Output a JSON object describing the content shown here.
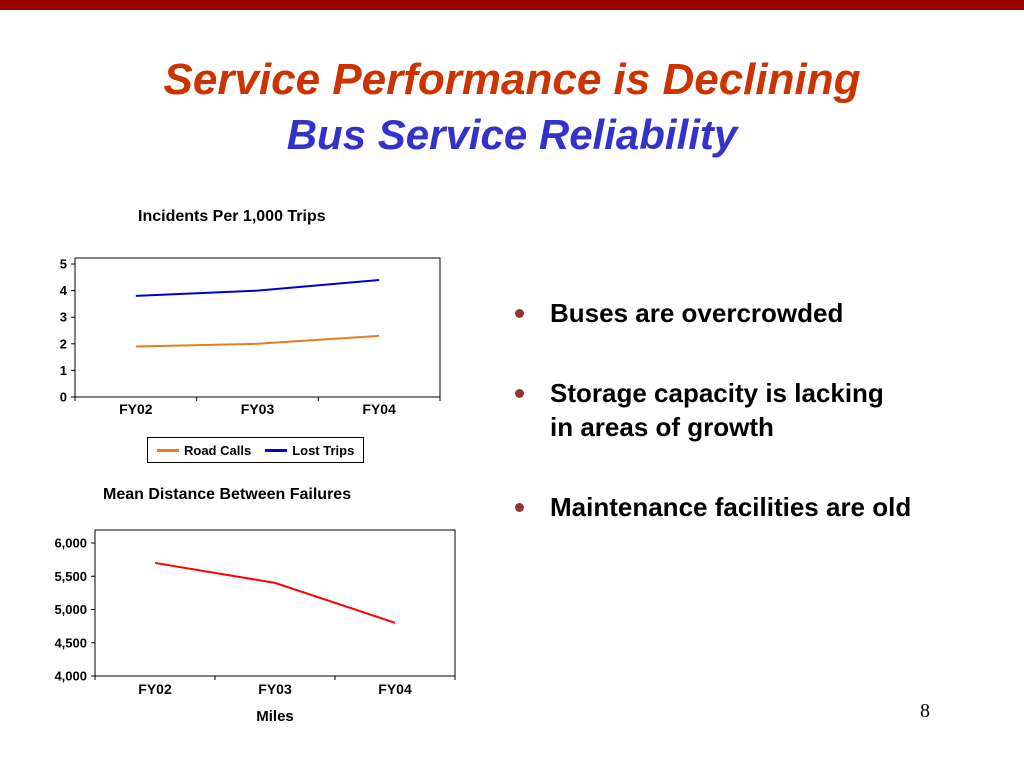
{
  "slide": {
    "title": "Service Performance is Declining",
    "subtitle": "Bus Service Reliability",
    "page_number": "8",
    "colors": {
      "top_bar": "#990000",
      "title": "#CC3300",
      "subtitle": "#3333CC",
      "bullet_dot": "#993333"
    },
    "bullets": [
      "Buses are overcrowded",
      "Storage capacity is lacking\nin areas of growth",
      "Maintenance facilities are old"
    ]
  },
  "chart_data": [
    {
      "type": "line",
      "title": "Incidents Per 1,000 Trips",
      "categories": [
        "FY02",
        "FY03",
        "FY04"
      ],
      "series": [
        {
          "name": "Road Calls",
          "color": "#E87D1E",
          "values": [
            1.9,
            2.0,
            2.3
          ]
        },
        {
          "name": "Lost Trips",
          "color": "#0000CC",
          "values": [
            3.8,
            4.0,
            4.4
          ]
        }
      ],
      "ylim": [
        0,
        5
      ],
      "yticks": [
        0,
        1,
        2,
        3,
        4,
        5
      ],
      "xlabel": "",
      "ylabel": "",
      "grid": false,
      "legend_position": "bottom"
    },
    {
      "type": "line",
      "title": "Mean Distance Between Failures",
      "categories": [
        "FY02",
        "FY03",
        "FY04"
      ],
      "series": [
        {
          "name": "Mean Distance Between Failures",
          "color": "#FF0000",
          "values": [
            5700,
            5400,
            4800
          ]
        }
      ],
      "ylim": [
        4000,
        6000
      ],
      "yticks": [
        4000,
        4500,
        5000,
        5500,
        6000
      ],
      "ytick_labels": [
        "4,000",
        "4,500",
        "5,000",
        "5,500",
        "6,000"
      ],
      "xlabel": "Miles",
      "ylabel": "",
      "grid": false,
      "legend_position": "none"
    }
  ]
}
